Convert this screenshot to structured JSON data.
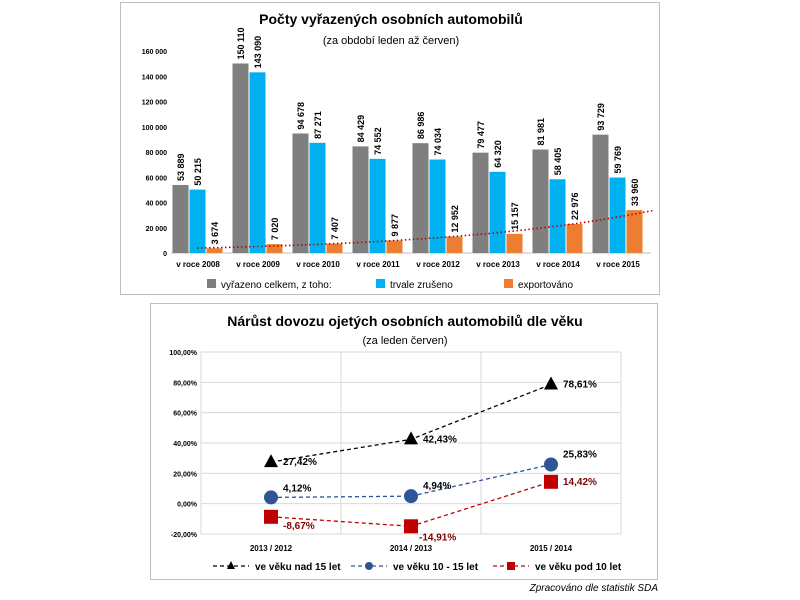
{
  "chart_data": [
    {
      "type": "bar",
      "title": "Počty vyřazených osobních automobilů",
      "subtitle": "(za období leden až červen)",
      "categories": [
        "v roce 2008",
        "v roce 2009",
        "v roce 2010",
        "v roce 2011",
        "v roce 2012",
        "v roce 2013",
        "v roce 2014",
        "v roce 2015"
      ],
      "series": [
        {
          "name": "vyřazeno celkem, z toho:",
          "color": "#7f7f7f",
          "values": [
            53889,
            150110,
            94678,
            84429,
            86986,
            79477,
            81981,
            93729
          ],
          "labels": [
            "53 889",
            "150 110",
            "94 678",
            "84 429",
            "86 986",
            "79 477",
            "81 981",
            "93 729"
          ]
        },
        {
          "name": "trvale zrušeno",
          "color": "#00b0f0",
          "values": [
            50215,
            143090,
            87271,
            74552,
            74034,
            64320,
            58405,
            59769
          ],
          "labels": [
            "50 215",
            "143 090",
            "87 271",
            "74 552",
            "74 034",
            "64 320",
            "58 405",
            "59 769"
          ]
        },
        {
          "name": "exportováno",
          "color": "#ed7d31",
          "values": [
            3674,
            7020,
            7407,
            9877,
            12952,
            15157,
            22976,
            33960
          ],
          "labels": [
            "3 674",
            "7 020",
            "7 407",
            "9 877",
            "12 952",
            "15 157",
            "22 976",
            "33 960"
          ]
        }
      ],
      "trendline": {
        "series": "exportováno",
        "color": "#c00000",
        "style": "dotted"
      },
      "ylim": [
        0,
        160000
      ],
      "yticks": [
        0,
        20000,
        40000,
        60000,
        80000,
        100000,
        120000,
        140000,
        160000
      ],
      "ytick_labels": [
        "0",
        "20 000",
        "40 000",
        "60 000",
        "80 000",
        "100 000",
        "120 000",
        "140 000",
        "160 000"
      ],
      "legend": "bottom"
    },
    {
      "type": "line",
      "title": "Nárůst dovozu ojetých osobních automobilů dle věku",
      "subtitle": "(za leden červen)",
      "categories": [
        "2013 / 2012",
        "2014 / 2013",
        "2015 / 2014"
      ],
      "series": [
        {
          "name": "ve věku nad 15 let",
          "color": "#000000",
          "marker": "triangle",
          "values": [
            27.42,
            42.43,
            78.61
          ],
          "labels": [
            "27,42%",
            "42,43%",
            "78,61%"
          ]
        },
        {
          "name": "ve věku 10 - 15 let",
          "color": "#2f5597",
          "marker": "circle",
          "values": [
            4.12,
            4.94,
            25.83
          ],
          "labels": [
            "4,12%",
            "4,94%",
            "25,83%"
          ]
        },
        {
          "name": "ve věku pod 10 let",
          "color": "#c00000",
          "marker": "square",
          "values": [
            -8.67,
            -14.91,
            14.42
          ],
          "labels": [
            "-8,67%",
            "-14,91%",
            "14,42%"
          ]
        }
      ],
      "ylim": [
        -20,
        100
      ],
      "yticks": [
        -20,
        0,
        20,
        40,
        60,
        80,
        100
      ],
      "ytick_labels": [
        "-20,00%",
        "0,00%",
        "20,00%",
        "40,00%",
        "60,00%",
        "80,00%",
        "100,00%"
      ],
      "legend": "bottom",
      "grid": true
    }
  ],
  "source_note": "Zpracováno dle statistik SDA"
}
